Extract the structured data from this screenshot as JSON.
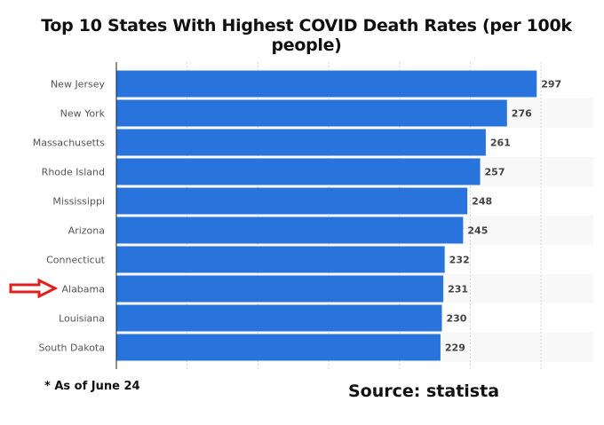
{
  "chart_data": {
    "type": "bar",
    "orientation": "horizontal",
    "title": "Top 10 States With Highest COVID Death Rates (per 100k people)",
    "categories": [
      "New Jersey",
      "New York",
      "Massachusetts",
      "Rhode Island",
      "Mississippi",
      "Arizona",
      "Connecticut",
      "Alabama",
      "Louisiana",
      "South Dakota"
    ],
    "values": [
      297,
      276,
      261,
      257,
      248,
      245,
      232,
      231,
      230,
      229
    ],
    "xlim": [
      0,
      337
    ],
    "grid": true,
    "grid_step": 50,
    "bar_color": "#2874dc",
    "highlighted_category": "Alabama",
    "highlight_color": "#e0201c"
  },
  "footnote": "* As of June 24",
  "source": "Source:  statista"
}
